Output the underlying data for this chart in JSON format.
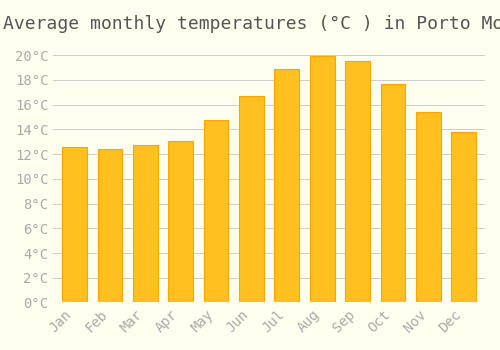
{
  "title": "Average monthly temperatures (°C ) in Porto Moniz",
  "months": [
    "Jan",
    "Feb",
    "Mar",
    "Apr",
    "May",
    "Jun",
    "Jul",
    "Aug",
    "Sep",
    "Oct",
    "Nov",
    "Dec"
  ],
  "values": [
    12.6,
    12.4,
    12.7,
    13.1,
    14.8,
    16.7,
    18.9,
    19.9,
    19.5,
    17.7,
    15.4,
    13.8
  ],
  "bar_color_face": "#FFC020",
  "bar_color_edge": "#FFA500",
  "background_color": "#FFFFF0",
  "grid_color": "#CCCCCC",
  "text_color": "#AAAAAA",
  "ylim": [
    0,
    21
  ],
  "ytick_step": 2,
  "title_fontsize": 13,
  "tick_fontsize": 10,
  "font_family": "monospace"
}
